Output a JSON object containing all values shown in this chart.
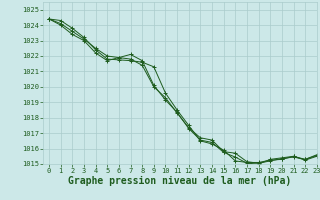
{
  "title": "Graphe pression niveau de la mer (hPa)",
  "background_color": "#cce8e8",
  "grid_color": "#aacccc",
  "line_color": "#1e5c1e",
  "xlim": [
    -0.5,
    23
  ],
  "ylim": [
    1015,
    1025.5
  ],
  "xticks": [
    0,
    1,
    2,
    3,
    4,
    5,
    6,
    7,
    8,
    9,
    10,
    11,
    12,
    13,
    14,
    15,
    16,
    17,
    18,
    19,
    20,
    21,
    22,
    23
  ],
  "yticks": [
    1015,
    1016,
    1017,
    1018,
    1019,
    1020,
    1021,
    1022,
    1023,
    1024,
    1025
  ],
  "series": [
    {
      "x": [
        0,
        1,
        2,
        3,
        4,
        5,
        6,
        7,
        8,
        9,
        10,
        11,
        12,
        13,
        14,
        15,
        16,
        17,
        18,
        19,
        20,
        21,
        22,
        23
      ],
      "y": [
        1024.4,
        1024.3,
        1023.8,
        1023.2,
        1022.4,
        1021.8,
        1021.75,
        1021.7,
        1021.6,
        1021.3,
        1019.6,
        1018.5,
        1017.5,
        1016.5,
        1016.3,
        1015.9,
        1015.2,
        1015.1,
        1015.1,
        1015.25,
        1015.3,
        1015.5,
        1015.3,
        1015.6
      ]
    },
    {
      "x": [
        0,
        1,
        2,
        3,
        4,
        5,
        6,
        7,
        8,
        9,
        10,
        11,
        12,
        13,
        14,
        15,
        16,
        17,
        18,
        19,
        20,
        21,
        22,
        23
      ],
      "y": [
        1024.4,
        1024.1,
        1023.6,
        1023.1,
        1022.5,
        1022.0,
        1021.9,
        1021.8,
        1021.4,
        1020.0,
        1019.3,
        1018.3,
        1017.35,
        1016.7,
        1016.55,
        1015.8,
        1015.7,
        1015.15,
        1015.05,
        1015.2,
        1015.35,
        1015.45,
        1015.3,
        1015.55
      ]
    },
    {
      "x": [
        0,
        1,
        2,
        3,
        4,
        5,
        6,
        7,
        8,
        9,
        10,
        11,
        12,
        13,
        14,
        15,
        16,
        17,
        18,
        19,
        20,
        21,
        22,
        23
      ],
      "y": [
        1024.4,
        1024.0,
        1023.4,
        1023.0,
        1022.2,
        1021.7,
        1021.9,
        1022.1,
        1021.7,
        1020.1,
        1019.15,
        1018.35,
        1017.3,
        1016.55,
        1016.4,
        1015.75,
        1015.45,
        1015.05,
        1015.0,
        1015.3,
        1015.4,
        1015.5,
        1015.25,
        1015.5
      ]
    }
  ],
  "marker": "+",
  "markersize": 3,
  "linewidth": 0.7,
  "title_fontsize": 7,
  "tick_fontsize": 5,
  "tick_color": "#1e5c1e"
}
